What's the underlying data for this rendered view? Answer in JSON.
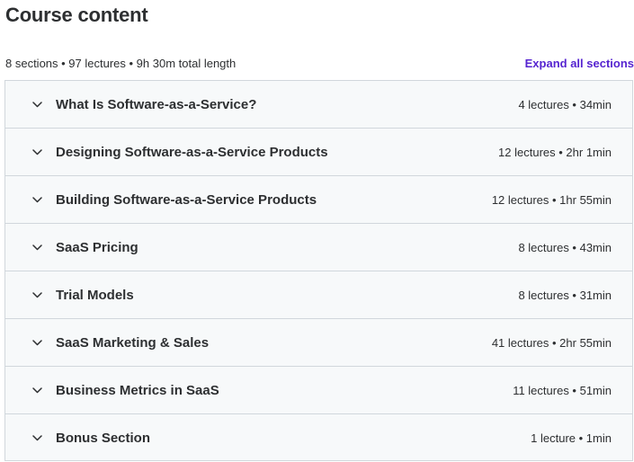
{
  "header": {
    "title": "Course content",
    "summary": "8 sections • 97 lectures • 9h 30m total length",
    "expand_label": "Expand all sections"
  },
  "colors": {
    "accent": "#5624d0",
    "text": "#2d2f31",
    "section_bg": "#f7f9fa",
    "border": "#d1d7dc"
  },
  "sections": [
    {
      "title": "What Is Software-as-a-Service?",
      "meta": "4 lectures • 34min",
      "icon": "chevron-down-icon"
    },
    {
      "title": "Designing Software-as-a-Service Products",
      "meta": "12 lectures • 2hr 1min",
      "icon": "chevron-down-icon"
    },
    {
      "title": "Building Software-as-a-Service Products",
      "meta": "12 lectures • 1hr 55min",
      "icon": "chevron-down-icon"
    },
    {
      "title": "SaaS Pricing",
      "meta": "8 lectures • 43min",
      "icon": "chevron-down-icon"
    },
    {
      "title": "Trial Models",
      "meta": "8 lectures • 31min",
      "icon": "chevron-down-icon"
    },
    {
      "title": "SaaS Marketing & Sales",
      "meta": "41 lectures • 2hr 55min",
      "icon": "chevron-down-icon"
    },
    {
      "title": "Business Metrics in SaaS",
      "meta": "11 lectures • 51min",
      "icon": "chevron-down-icon"
    },
    {
      "title": "Bonus Section",
      "meta": "1 lecture • 1min",
      "icon": "chevron-down-icon"
    }
  ]
}
